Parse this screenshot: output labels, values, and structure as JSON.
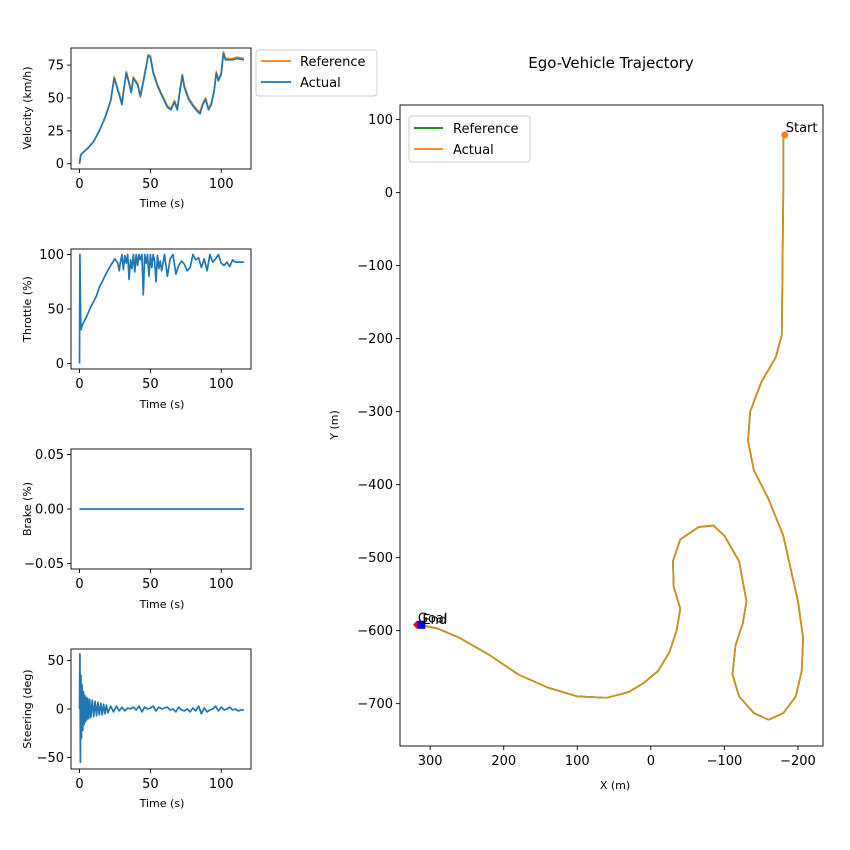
{
  "colors": {
    "reference_orange": "#ff7f0e",
    "actual_blue": "#1f77b4",
    "reference_green": "#008000",
    "trajectory_line": "#d4901f",
    "start_marker": "#ff7f0e",
    "end_square": "#0000ff",
    "end_diamond": "#ff0000"
  },
  "chart_data": [
    {
      "id": "velocity",
      "type": "line",
      "xlabel": "Time (s)",
      "ylabel": "Velocity (km/h)",
      "xlim": [
        -6,
        121
      ],
      "ylim": [
        -4,
        88
      ],
      "xticks": [
        0,
        50,
        100
      ],
      "yticks": [
        0,
        25,
        50,
        75
      ],
      "legend": {
        "placement": "outside-top-right",
        "entries": [
          "Reference",
          "Actual"
        ]
      },
      "series": [
        {
          "name": "Reference",
          "color": "#ff7f0e",
          "x": [
            0,
            0.5,
            1,
            3,
            6,
            10,
            14,
            18,
            22,
            24.5,
            27,
            30,
            31,
            33,
            35,
            36.5,
            38,
            41,
            43,
            45,
            48.5,
            50,
            52,
            55,
            58,
            62,
            64.5,
            67,
            69,
            71,
            72.5,
            74,
            77,
            80,
            83,
            85,
            87,
            89,
            91,
            93,
            95,
            96.5,
            98,
            100,
            101.5,
            103,
            106,
            108,
            111,
            116
          ],
          "values": [
            0,
            4,
            7,
            9,
            12,
            17,
            25,
            35,
            48,
            66,
            57,
            46,
            55,
            70,
            62,
            55,
            66,
            61,
            52,
            63,
            83,
            82,
            70,
            60,
            53,
            44,
            42,
            48,
            42,
            57,
            68,
            59,
            50,
            45,
            41,
            39,
            46,
            50,
            42,
            46,
            56,
            70,
            64,
            69,
            85,
            80,
            80,
            80,
            81,
            80
          ]
        },
        {
          "name": "Actual",
          "color": "#1f77b4",
          "x": [
            0,
            0.5,
            1,
            3,
            6,
            10,
            14,
            18,
            22,
            24.5,
            27,
            30,
            31,
            33,
            35,
            36.5,
            38,
            41,
            43,
            45,
            48.5,
            50,
            52,
            55,
            58,
            62,
            64.5,
            67,
            69,
            71,
            72.5,
            74,
            77,
            80,
            83,
            85,
            87,
            89,
            91,
            93,
            95,
            96.5,
            98,
            100,
            101.5,
            103,
            106,
            108,
            111,
            116
          ],
          "values": [
            0,
            4,
            7,
            9,
            12,
            17,
            25,
            35,
            48,
            65,
            56,
            45,
            54,
            69,
            61,
            54,
            65,
            60,
            51,
            62,
            82,
            81,
            69,
            59,
            52,
            43,
            41,
            47,
            41,
            56,
            67,
            58,
            49,
            44,
            40,
            38,
            45,
            49,
            41,
            45,
            55,
            69,
            63,
            68,
            84,
            79,
            79,
            79,
            80,
            79
          ]
        }
      ]
    },
    {
      "id": "throttle",
      "type": "line",
      "xlabel": "Time (s)",
      "ylabel": "Throttle (%)",
      "xlim": [
        -6,
        121
      ],
      "ylim": [
        -5,
        105
      ],
      "xticks": [
        0,
        50,
        100
      ],
      "yticks": [
        0,
        50,
        100
      ],
      "series": [
        {
          "name": "Actual",
          "color": "#1f77b4",
          "x": [
            0,
            0.3,
            0.6,
            1,
            1.5,
            2,
            3,
            5,
            8,
            12,
            14,
            16,
            19,
            22,
            25,
            27,
            28,
            29,
            30,
            31,
            32,
            33,
            34,
            35,
            36,
            37,
            38,
            39,
            40,
            41,
            42,
            43,
            44,
            45,
            46,
            47,
            48,
            49,
            50,
            51,
            52,
            53,
            54,
            55,
            56,
            57,
            58,
            60,
            62,
            64,
            66,
            68,
            70,
            72,
            74,
            76,
            78,
            80,
            82,
            84,
            86,
            88,
            90,
            92,
            94,
            96,
            98,
            100,
            102,
            104,
            106,
            108,
            110,
            112,
            116
          ],
          "values": [
            0,
            100,
            60,
            31,
            33,
            35,
            38,
            43,
            52,
            62,
            70,
            75,
            83,
            90,
            96,
            92,
            85,
            94,
            100,
            86,
            99,
            92,
            100,
            77,
            95,
            87,
            100,
            84,
            100,
            90,
            100,
            95,
            100,
            63,
            100,
            92,
            100,
            80,
            100,
            88,
            100,
            94,
            75,
            99,
            87,
            94,
            85,
            100,
            80,
            96,
            100,
            82,
            90,
            94,
            91,
            85,
            88,
            100,
            95,
            97,
            88,
            96,
            85,
            100,
            93,
            96,
            100,
            92,
            90,
            93,
            89,
            95,
            93,
            93,
            93
          ]
        }
      ]
    },
    {
      "id": "brake",
      "type": "line",
      "xlabel": "Time (s)",
      "ylabel": "Brake (%)",
      "xlim": [
        -6,
        121
      ],
      "ylim": [
        -0.055,
        0.055
      ],
      "xticks": [
        0,
        50,
        100
      ],
      "yticks": [
        -0.05,
        0.0,
        0.05
      ],
      "ytick_labels": [
        "−0.05",
        "0.00",
        "0.05"
      ],
      "series": [
        {
          "name": "Actual",
          "color": "#1f77b4",
          "x": [
            0,
            116
          ],
          "values": [
            0,
            0
          ]
        }
      ]
    },
    {
      "id": "steering",
      "type": "line",
      "xlabel": "Time (s)",
      "ylabel": "Steering (deg)",
      "xlim": [
        -6,
        121
      ],
      "ylim": [
        -62,
        62
      ],
      "xticks": [
        0,
        50,
        100
      ],
      "yticks": [
        -50,
        0,
        50
      ],
      "ytick_labels": [
        "−50",
        "0",
        "50"
      ],
      "series": [
        {
          "name": "Actual",
          "color": "#1f77b4",
          "x": [
            0,
            0.3,
            0.6,
            1,
            1.4,
            1.8,
            2.3,
            2.8,
            3.3,
            3.8,
            4.3,
            4.8,
            5.3,
            5.8,
            6.5,
            7.2,
            8,
            9,
            10,
            11,
            12,
            13,
            14,
            15,
            16,
            17,
            18,
            19,
            20,
            22,
            24,
            26,
            28,
            30,
            32,
            34,
            36,
            38,
            40,
            42,
            44,
            46,
            48,
            50,
            52,
            54,
            56,
            58,
            60,
            62,
            64,
            66,
            68,
            70,
            72,
            74,
            76,
            78,
            80,
            82,
            84,
            86,
            88,
            90,
            92,
            94,
            96,
            98,
            100,
            102,
            104,
            106,
            108,
            110,
            112,
            114,
            116
          ],
          "values": [
            0,
            57,
            -55,
            35,
            -30,
            25,
            -22,
            18,
            -16,
            14,
            -13,
            12,
            -11,
            11,
            -10,
            10,
            -9,
            9,
            -8,
            8,
            -7,
            7,
            -6,
            6,
            -6,
            5,
            -5,
            4,
            -4,
            3,
            -3,
            3,
            -2,
            2,
            -2,
            1,
            0,
            2,
            -1,
            3,
            -3,
            2,
            0,
            1,
            3,
            -2,
            2,
            0,
            1,
            2,
            -1,
            0,
            -3,
            2,
            -1,
            -2,
            0,
            -3,
            1,
            -2,
            3,
            -5,
            1,
            -3,
            -1,
            0,
            3,
            -2,
            2,
            -1,
            0,
            2,
            -1,
            0,
            -2,
            -1,
            -1
          ]
        }
      ]
    },
    {
      "id": "trajectory",
      "type": "line",
      "title": "Ego-Vehicle Trajectory",
      "xlabel": "X (m)",
      "ylabel": "Y (m)",
      "x_inverted": true,
      "xlim": [
        341,
        -234
      ],
      "ylim": [
        -758,
        120
      ],
      "xticks": [
        300,
        200,
        100,
        0,
        -100,
        -200
      ],
      "xtick_labels": [
        "300",
        "200",
        "100",
        "0",
        "−100",
        "−200"
      ],
      "yticks": [
        100,
        0,
        -100,
        -200,
        -300,
        -400,
        -500,
        -600,
        -700
      ],
      "ytick_labels": [
        "100",
        "0",
        "−100",
        "−200",
        "−300",
        "−400",
        "−500",
        "−600",
        "−700"
      ],
      "legend": {
        "placement": "top-left",
        "entries": [
          "Reference",
          "Actual"
        ]
      },
      "annotations": [
        {
          "text": "Start",
          "x": -182,
          "y": 79
        },
        {
          "text": "End",
          "x": 312,
          "y": -592
        },
        {
          "text": "Goal",
          "x": 318,
          "y": -590
        }
      ],
      "series": [
        {
          "name": "Reference",
          "color": "#008000",
          "x": [
            -180,
            -180,
            -178,
            -170,
            -150,
            -135,
            -132,
            -140,
            -160,
            -180,
            -200,
            -207,
            -205,
            -197,
            -180,
            -160,
            -140,
            -120,
            -111,
            -115,
            -125,
            -130,
            -120,
            -100,
            -85,
            -65,
            -40,
            -30,
            -31,
            -40,
            -35,
            -25,
            -10,
            10,
            30,
            60,
            100,
            140,
            180,
            220,
            260,
            290,
            310,
            318
          ],
          "values": [
            79,
            0,
            -195,
            -225,
            -260,
            -300,
            -340,
            -380,
            -420,
            -470,
            -560,
            -610,
            -655,
            -690,
            -713,
            -722,
            -713,
            -690,
            -660,
            -620,
            -590,
            -560,
            -505,
            -470,
            -456,
            -458,
            -475,
            -505,
            -540,
            -570,
            -600,
            -630,
            -655,
            -672,
            -684,
            -692,
            -690,
            -678,
            -660,
            -633,
            -610,
            -597,
            -593,
            -592
          ]
        },
        {
          "name": "Actual",
          "color": "#ff7f0e",
          "x": [
            -180,
            -180,
            -178,
            -170,
            -150,
            -135,
            -132,
            -140,
            -160,
            -180,
            -200,
            -207,
            -205,
            -197,
            -180,
            -160,
            -140,
            -120,
            -111,
            -115,
            -125,
            -130,
            -120,
            -100,
            -85,
            -65,
            -40,
            -30,
            -31,
            -40,
            -35,
            -25,
            -10,
            10,
            30,
            60,
            100,
            140,
            180,
            220,
            260,
            290,
            310,
            318
          ],
          "values": [
            79,
            0,
            -195,
            -225,
            -260,
            -300,
            -340,
            -380,
            -420,
            -470,
            -560,
            -610,
            -655,
            -690,
            -713,
            -722,
            -713,
            -690,
            -660,
            -620,
            -590,
            -560,
            -505,
            -470,
            -456,
            -458,
            -475,
            -505,
            -540,
            -570,
            -600,
            -630,
            -655,
            -672,
            -684,
            -692,
            -690,
            -678,
            -660,
            -633,
            -610,
            -597,
            -593,
            -592
          ]
        }
      ]
    }
  ]
}
